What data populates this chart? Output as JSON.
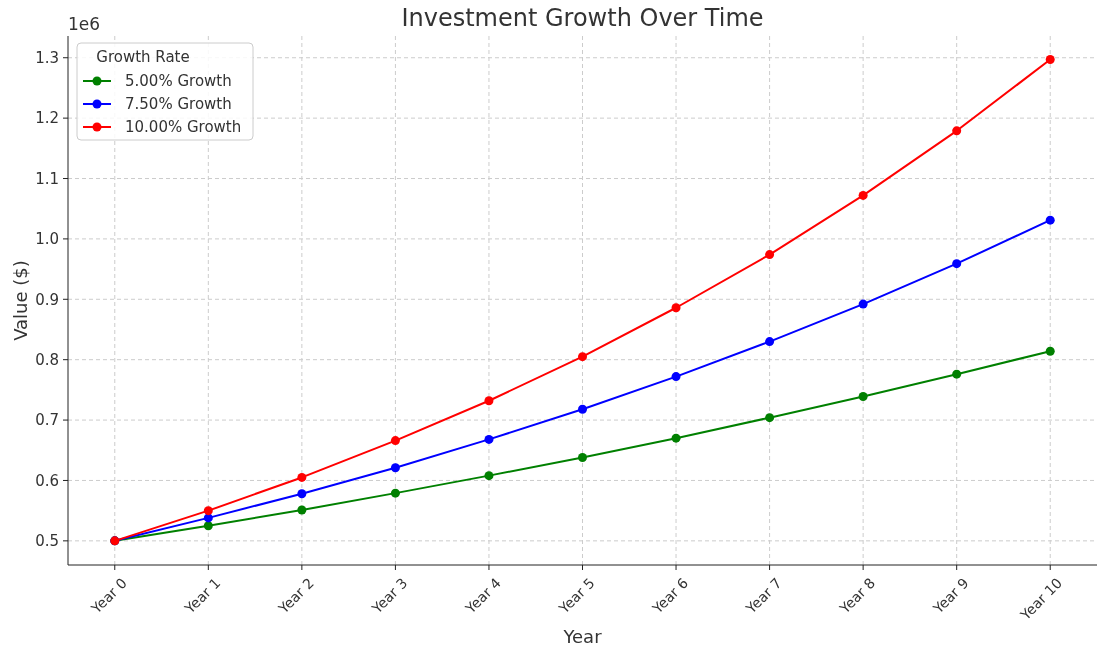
{
  "chart_data": {
    "type": "line",
    "title": "Investment Growth Over Time",
    "xlabel": "Year",
    "ylabel": "Value ($)",
    "annotations": [
      "1e6"
    ],
    "categories": [
      "Year 0",
      "Year 1",
      "Year 2",
      "Year 3",
      "Year 4",
      "Year 5",
      "Year 6",
      "Year 7",
      "Year 8",
      "Year 9",
      "Year 10"
    ],
    "series": [
      {
        "name": "5.00% Growth",
        "color": "#008000",
        "values": [
          0.5,
          0.525,
          0.551,
          0.579,
          0.608,
          0.638,
          0.67,
          0.704,
          0.739,
          0.776,
          0.814
        ]
      },
      {
        "name": "7.50% Growth",
        "color": "#0000ff",
        "values": [
          0.5,
          0.538,
          0.578,
          0.621,
          0.668,
          0.718,
          0.772,
          0.83,
          0.892,
          0.959,
          1.031
        ]
      },
      {
        "name": "10.00% Growth",
        "color": "#ff0000",
        "values": [
          0.5,
          0.55,
          0.605,
          0.666,
          0.732,
          0.805,
          0.886,
          0.974,
          1.072,
          1.179,
          1.297
        ]
      }
    ],
    "legend_title": "Growth Rate",
    "legend": "top left",
    "ylim": [
      0.46,
      1.336
    ],
    "yticks": [
      {
        "value": 0.5,
        "label": "0.5"
      },
      {
        "value": 0.6,
        "label": "0.6"
      },
      {
        "value": 0.7,
        "label": "0.7"
      },
      {
        "value": 0.8,
        "label": "0.8"
      },
      {
        "value": 0.9,
        "label": "0.9"
      },
      {
        "value": 1.0,
        "label": "1.0"
      },
      {
        "value": 1.1,
        "label": "1.1"
      },
      {
        "value": 1.2,
        "label": "1.2"
      },
      {
        "value": 1.3,
        "label": "1.3"
      }
    ],
    "grid": true,
    "marker": "circle",
    "line_style": "solid"
  }
}
